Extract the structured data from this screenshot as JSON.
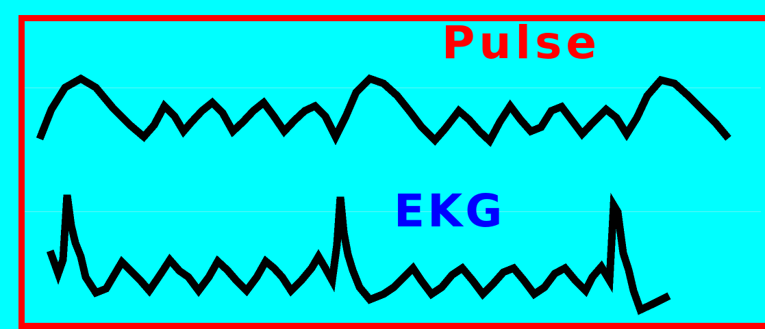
{
  "pulse": {
    "label": "Pulse",
    "color": "#ff0000"
  },
  "ekg": {
    "label": "EKG",
    "color": "#0000ff"
  },
  "screen": {
    "background": "#00ffff",
    "border_color": "#ff0000",
    "trace_color": "#000000"
  }
}
